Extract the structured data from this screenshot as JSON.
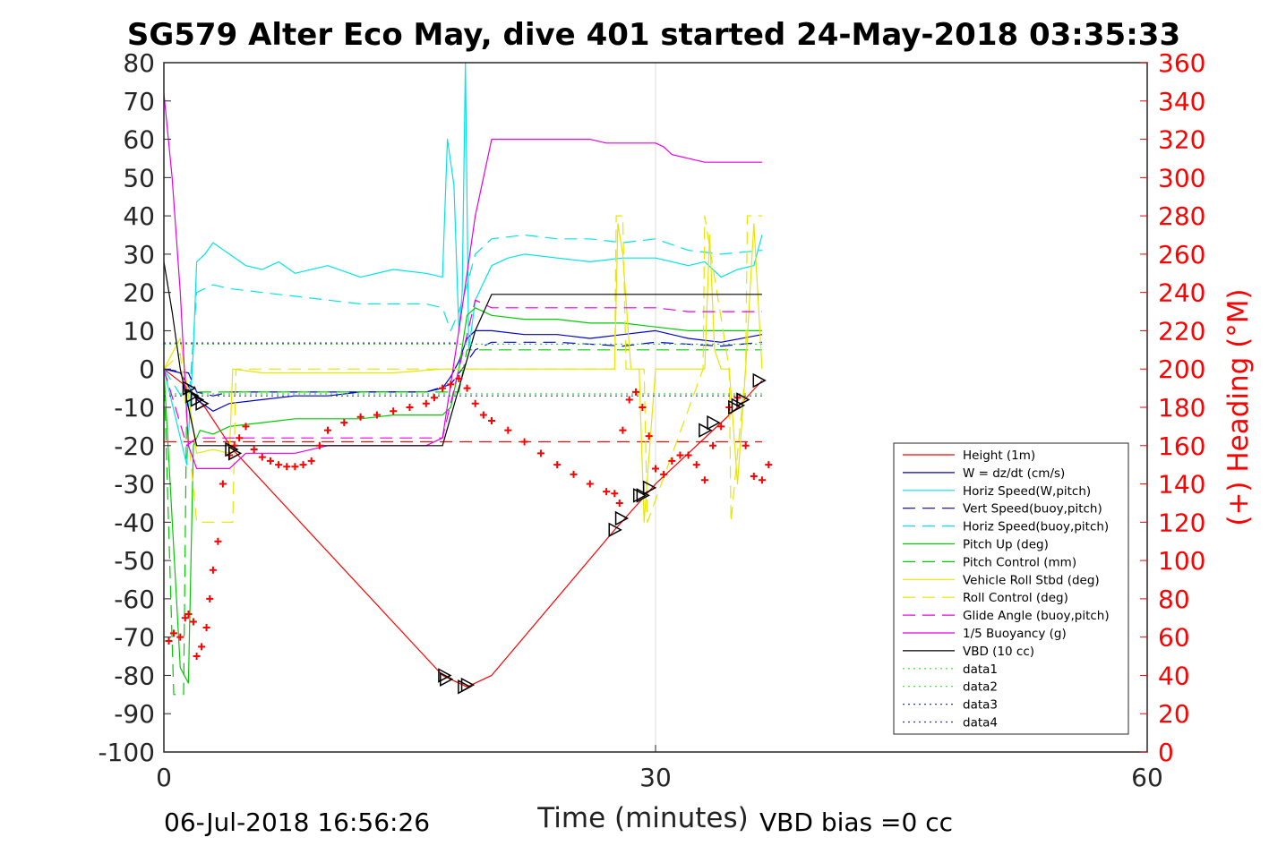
{
  "figure": {
    "title": "SG579 Alter Eco May, dive 401 started 24-May-2018 03:35:33",
    "footer_left": "06-Jul-2018 16:56:26",
    "footer_right": "VBD bias =0 cc"
  },
  "colors": {
    "red": "#ff0000",
    "blue": "#0000cc",
    "cyan": "#00e5e5",
    "green": "#00cc00",
    "yellow": "#e6e600",
    "magenta": "#e600e6",
    "black": "#000000",
    "data_green": "#33dd33",
    "data_navy": "#3333aa"
  },
  "chart_data": {
    "type": "line",
    "title": "SG579 Alter Eco May, dive 401 started 24-May-2018 03:35:33",
    "xlabel": "Time (minutes)",
    "ylabel": "",
    "y2label": "(+) Heading (°M)",
    "xlim": [
      0,
      60
    ],
    "ylim": [
      -100,
      80
    ],
    "y2lim": [
      0,
      360
    ],
    "xticks": [
      0,
      30,
      60
    ],
    "yticks": [
      80,
      70,
      60,
      50,
      40,
      30,
      20,
      10,
      0,
      -10,
      -20,
      -30,
      -40,
      -50,
      -60,
      -70,
      -80,
      -90,
      -100
    ],
    "y2ticks": [
      360,
      340,
      320,
      300,
      280,
      260,
      240,
      220,
      200,
      180,
      160,
      140,
      120,
      100,
      80,
      60,
      40,
      20,
      0
    ],
    "grid": "x only",
    "legend_position": "lower-right",
    "legend": [
      "Height (1m)",
      "W = dz/dt (cm/s)",
      "Horiz Speed(W,pitch)",
      "Vert Speed(buoy,pitch)",
      "Horiz Speed(buoy,pitch)",
      "Pitch Up (deg)",
      "Pitch Control (mm)",
      "Vehicle Roll Stbd (deg)",
      "Roll Control (deg)",
      "Glide Angle (buoy,pitch)",
      "1/5 Buoyancy (g)",
      "VBD (10 cc)",
      "data1",
      "data2",
      "data3",
      "data4"
    ],
    "series": [
      {
        "name": "Height (1m)",
        "color": "#ff0000",
        "dash": "",
        "x": [
          0,
          1.2,
          2.5,
          4.2,
          17,
          18.5,
          20,
          27.5,
          30,
          35,
          36.5
        ],
        "y": [
          0,
          -4,
          -10,
          -21,
          -80,
          -83,
          -80,
          -42,
          -30,
          -10,
          -3
        ]
      },
      {
        "name": "W = dz/dt (cm/s)",
        "color": "#0000cc",
        "dash": "",
        "x": [
          0,
          1,
          2,
          3,
          4,
          6,
          8,
          10,
          12,
          14,
          16,
          17,
          17.5,
          18,
          18.5,
          19,
          20,
          22,
          24,
          26,
          28,
          30,
          32,
          34,
          36.5
        ],
        "y": [
          0,
          -1,
          -8,
          -11,
          -9,
          -8,
          -7,
          -7,
          -6,
          -6,
          -6,
          -5,
          -2,
          2,
          8,
          10,
          10,
          9,
          9,
          8,
          9,
          10,
          8,
          7,
          9
        ]
      },
      {
        "name": "Horiz Speed(W,pitch)",
        "color": "#00e5e5",
        "dash": "",
        "x": [
          0,
          1.4,
          1.8,
          2,
          2.5,
          3,
          4,
          5,
          6,
          7,
          8,
          10,
          12,
          14,
          16,
          17,
          17.3,
          17.7,
          18,
          18.2,
          18.4,
          18.6,
          19,
          20,
          21,
          22,
          24,
          26,
          28,
          30,
          32,
          33,
          34,
          35,
          36,
          36.5
        ],
        "y": [
          0,
          -25,
          5,
          28,
          30,
          33,
          30,
          27,
          26,
          28,
          25,
          27,
          24,
          26,
          25,
          24,
          60,
          48,
          10,
          20,
          80,
          5,
          18,
          27,
          29,
          30,
          29,
          28,
          29,
          29,
          27,
          28,
          24,
          26,
          27,
          35
        ]
      },
      {
        "name": "Vert Speed(buoy,pitch)",
        "color": "#0000cc",
        "dash": "14 8",
        "x": [
          0,
          1.5,
          2,
          3,
          4,
          8,
          12,
          16,
          17.5,
          18.2,
          19,
          20,
          24,
          28,
          30,
          34,
          36.5
        ],
        "y": [
          0,
          -1,
          -6,
          -7,
          -6,
          -6,
          -6,
          -6,
          -4,
          0,
          5,
          7,
          7,
          6,
          7,
          6,
          7
        ]
      },
      {
        "name": "Horiz Speed(buoy,pitch)",
        "color": "#00e5e5",
        "dash": "14 8",
        "x": [
          0,
          1.5,
          2,
          3,
          4,
          6,
          8,
          10,
          12,
          14,
          16,
          17,
          17.5,
          18,
          18.5,
          19,
          20,
          22,
          24,
          26,
          28,
          30,
          32,
          34,
          36.5
        ],
        "y": [
          0,
          -10,
          20,
          22,
          21,
          20,
          19,
          18,
          17,
          17,
          17,
          16,
          10,
          15,
          22,
          30,
          34,
          35,
          34,
          34,
          33,
          34,
          31,
          30,
          31
        ]
      },
      {
        "name": "Pitch Up (deg)",
        "color": "#00cc00",
        "dash": "",
        "x": [
          0,
          1,
          1.5,
          1.8,
          2.2,
          3,
          4,
          6,
          8,
          10,
          12,
          14,
          16,
          17,
          17.5,
          18,
          18.5,
          19,
          20,
          22,
          24,
          26,
          28,
          30,
          32,
          34,
          36.5
        ],
        "y": [
          0,
          -78,
          -82,
          -20,
          -16,
          -17,
          -15,
          -14,
          -13,
          -13,
          -13,
          -12,
          -12,
          -12,
          -10,
          0,
          14,
          16,
          14,
          13,
          13,
          12,
          12,
          11,
          10,
          10,
          10
        ]
      },
      {
        "name": "Pitch Control (mm)",
        "color": "#00cc00",
        "dash": "14 8",
        "x": [
          0,
          0.6,
          1.2,
          1.4,
          2,
          18,
          18.5,
          19,
          36.5
        ],
        "y": [
          0,
          -85,
          -85,
          -6,
          -6,
          -6,
          5,
          5,
          5
        ]
      },
      {
        "name": "Vehicle Roll Stbd (deg)",
        "color": "#e6e600",
        "dash": "",
        "x": [
          0,
          1,
          2,
          3,
          4,
          4.2,
          6,
          10,
          14,
          17,
          18,
          19,
          20,
          26,
          27.5,
          27.7,
          28,
          28.5,
          29,
          29.3,
          30,
          33,
          33.3,
          33.6,
          34,
          34.5,
          35,
          35.5,
          36,
          36.5
        ],
        "y": [
          0,
          8,
          -22,
          -21,
          -22,
          0,
          -1,
          -1,
          -1,
          0,
          0,
          0,
          0,
          0,
          0,
          38,
          30,
          0,
          0,
          -40,
          0,
          0,
          35,
          5,
          0,
          0,
          -30,
          0,
          38,
          0
        ]
      },
      {
        "name": "Roll Control (deg)",
        "color": "#e6e600",
        "dash": "14 8",
        "x": [
          0,
          1,
          2,
          3,
          4.2,
          4.4,
          18,
          19,
          27.5,
          27.6,
          28,
          28.2,
          29.3,
          29.5,
          32.9,
          33,
          34.5,
          34.6,
          35.5,
          35.6,
          36.5
        ],
        "y": [
          0,
          4,
          -40,
          -40,
          -40,
          0,
          0,
          0,
          0,
          40,
          40,
          0,
          0,
          -40,
          0,
          40,
          0,
          -40,
          0,
          40,
          40
        ]
      },
      {
        "name": "Glide Angle (buoy,pitch)",
        "color": "#e600e6",
        "dash": "14 8",
        "x": [
          0,
          1.4,
          2,
          3,
          4,
          8,
          12,
          17,
          18,
          19,
          20,
          24,
          28,
          30,
          32,
          34,
          36.5
        ],
        "y": [
          0,
          -20,
          -18,
          -18,
          -18,
          -18,
          -18,
          -18,
          0,
          18,
          16,
          16,
          16,
          16,
          15,
          15,
          15
        ]
      },
      {
        "name": "1/5 Buoyancy (g)",
        "color": "#e600e6",
        "dash": "",
        "x": [
          0,
          0.5,
          1,
          1.5,
          2,
          3,
          4,
          5,
          8,
          10,
          12,
          14,
          16,
          17,
          18,
          19,
          20,
          22,
          26,
          27,
          30,
          30.5,
          31,
          32,
          33,
          34,
          36.5
        ],
        "y": [
          72,
          50,
          20,
          -20,
          -26,
          -26,
          -26,
          -22,
          -22,
          -20,
          -20,
          -20,
          -20,
          -18,
          10,
          40,
          60,
          60,
          60,
          59,
          59,
          58,
          56,
          55,
          54,
          54,
          54
        ]
      },
      {
        "name": "VBD (10 cc)",
        "color": "#000000",
        "dash": "",
        "x": [
          0,
          0.5,
          1,
          1.5,
          2,
          17,
          18,
          19,
          20,
          36.5
        ],
        "y": [
          28,
          15,
          0,
          -10,
          -20,
          -20,
          -5,
          10,
          19.5,
          19.5
        ]
      },
      {
        "name": "data1",
        "color": "#33dd33",
        "dash": "2 4",
        "x": [
          0,
          36.5
        ],
        "y": [
          6.5,
          6.5
        ]
      },
      {
        "name": "data2",
        "color": "#33dd33",
        "dash": "2 4",
        "x": [
          0,
          36.5
        ],
        "y": [
          -6.5,
          -6.5
        ]
      },
      {
        "name": "data3",
        "color": "#3333aa",
        "dash": "2 4",
        "x": [
          0,
          18
        ],
        "y": [
          6.8,
          6.8
        ]
      },
      {
        "name": "data4",
        "color": "#3333aa",
        "dash": "2 4",
        "x": [
          0,
          36.5
        ],
        "y": [
          -7,
          -7
        ]
      }
    ],
    "heading_reference": {
      "color": "#ff0000",
      "dash": "14 8",
      "y2": 162
    },
    "heading_points": {
      "color": "#ff0000",
      "x": [
        0.3,
        0.6,
        1.0,
        1.3,
        1.5,
        1.8,
        2.0,
        2.3,
        2.6,
        2.8,
        3.0,
        3.3,
        3.6,
        4.0,
        4.3,
        4.6,
        5.0,
        5.5,
        6,
        6.5,
        7,
        7.5,
        8,
        8.5,
        9,
        9.5,
        10,
        11,
        12,
        13,
        14,
        15,
        16,
        16.5,
        17,
        17.5,
        18,
        18.5,
        19,
        19.5,
        20,
        21,
        22,
        23,
        24,
        25,
        26,
        27,
        27.5,
        27.8,
        28,
        28.4,
        28.8,
        29.2,
        29.6,
        30,
        30.5,
        31,
        31.5,
        32,
        32.5,
        33,
        33.5,
        34,
        34.5,
        35,
        35.5,
        36,
        36.5,
        36.9
      ],
      "y2": [
        58,
        62,
        60,
        70,
        72,
        68,
        50,
        55,
        65,
        80,
        95,
        110,
        140,
        155,
        160,
        164,
        170,
        158,
        154,
        152,
        150,
        149,
        149,
        150,
        152,
        160,
        168,
        172,
        175,
        176,
        178,
        180,
        182,
        185,
        190,
        192,
        195,
        190,
        182,
        176,
        173,
        168,
        162,
        156,
        150,
        145,
        140,
        136,
        135,
        130,
        168,
        184,
        188,
        180,
        165,
        148,
        145,
        152,
        155,
        155,
        150,
        142,
        160,
        170,
        180,
        185,
        160,
        144,
        142,
        150
      ]
    },
    "dive_markers": {
      "color": "#000000",
      "x": [
        1.5,
        1.7,
        2.0,
        2.3,
        4.1,
        4.3,
        17.1,
        17.2,
        18.3,
        18.5,
        27.5,
        27.9,
        29.0,
        29.2,
        29.6,
        33.0,
        33.5,
        34.8,
        35.0,
        35.3,
        36.3
      ],
      "y": [
        -5,
        -7,
        -8,
        -9,
        -21,
        -22,
        -80,
        -81,
        -83,
        -82.5,
        -42,
        -39,
        -33,
        -33,
        -31,
        -16,
        -14,
        -10,
        -9.5,
        -8,
        -3
      ]
    }
  }
}
